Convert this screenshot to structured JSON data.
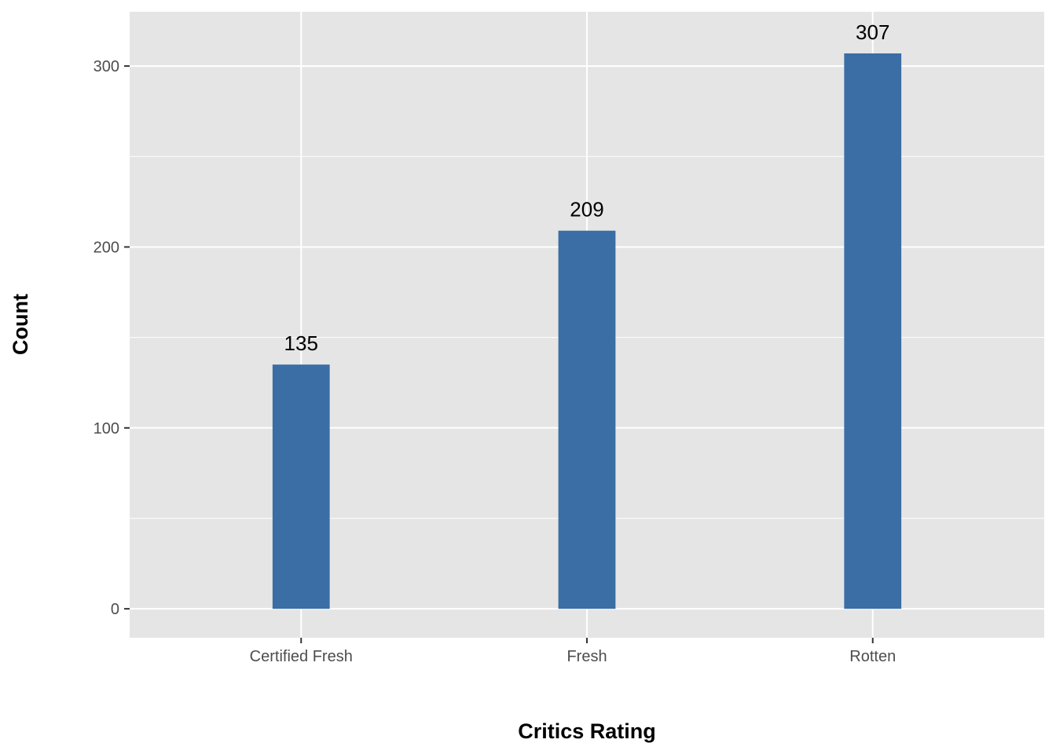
{
  "chart_data": {
    "type": "bar",
    "title": "",
    "xlabel": "Critics Rating",
    "ylabel": "Count",
    "categories": [
      "Certified Fresh",
      "Fresh",
      "Rotten"
    ],
    "values": [
      135,
      209,
      307
    ],
    "data_labels": [
      "135",
      "209",
      "307"
    ],
    "ylim": [
      -16,
      330
    ],
    "yticks": [
      0,
      100,
      200,
      300
    ],
    "ytick_labels": [
      "0",
      "100",
      "200",
      "300"
    ],
    "grid": true,
    "legend": "none",
    "colors": {
      "bar": "#3a6ea5",
      "panel": "#e5e5e5",
      "grid": "#ffffff",
      "tick": "#333333"
    }
  }
}
